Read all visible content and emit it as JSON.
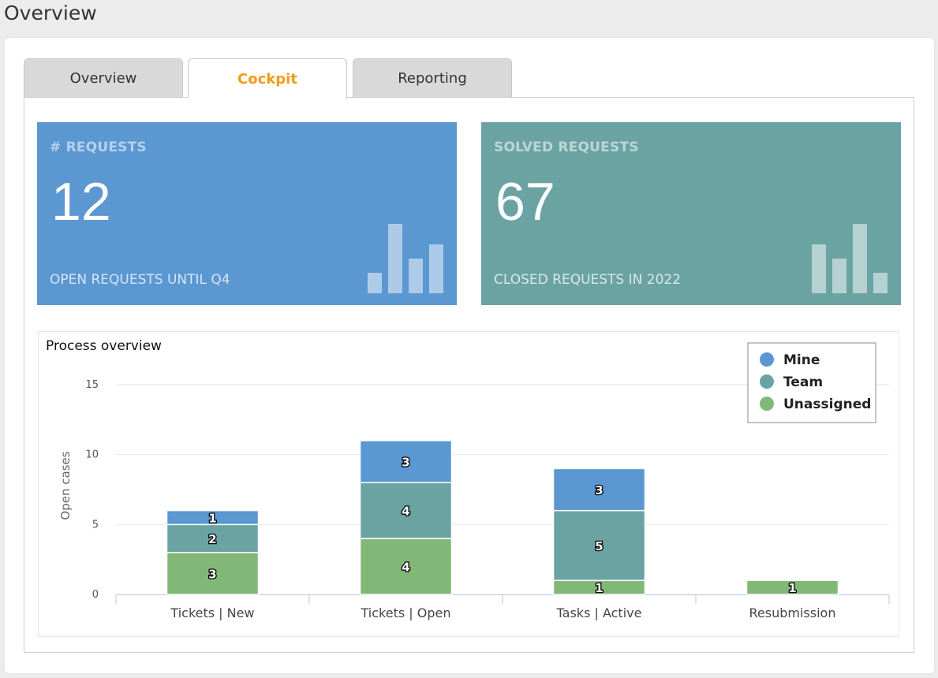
{
  "page": {
    "title": "Overview"
  },
  "tabs": [
    {
      "label": "Overview",
      "active": false
    },
    {
      "label": "Cockpit",
      "active": true
    },
    {
      "label": "Reporting",
      "active": false
    }
  ],
  "cards": [
    {
      "label": "# REQUESTS",
      "value": "12",
      "subtitle": "OPEN REQUESTS UNTIL Q4",
      "color": "#5b97d1",
      "bars": [
        0.3,
        1.0,
        0.5,
        0.7
      ]
    },
    {
      "label": "SOLVED REQUESTS",
      "value": "67",
      "subtitle": "CLOSED REQUESTS IN 2022",
      "color": "#6ba3a3",
      "bars": [
        0.7,
        0.5,
        1.0,
        0.3
      ]
    }
  ],
  "chart_data": {
    "type": "bar",
    "stacked": true,
    "title": "Process overview",
    "xlabel": "",
    "ylabel": "Open cases",
    "ylim": [
      0,
      15
    ],
    "yticks": [
      0,
      5,
      10,
      15
    ],
    "categories": [
      "Tickets | New",
      "Tickets | Open",
      "Tasks | Active",
      "Resubmission"
    ],
    "series": [
      {
        "name": "Unassigned",
        "color": "#82b877",
        "values": [
          3,
          4,
          1,
          1
        ]
      },
      {
        "name": "Team",
        "color": "#6ba3a3",
        "values": [
          2,
          4,
          5,
          0
        ]
      },
      {
        "name": "Mine",
        "color": "#5b97d1",
        "values": [
          1,
          3,
          3,
          0
        ]
      }
    ],
    "legend": {
      "position": "top-right",
      "order": [
        "Mine",
        "Team",
        "Unassigned"
      ]
    },
    "grid": true
  }
}
